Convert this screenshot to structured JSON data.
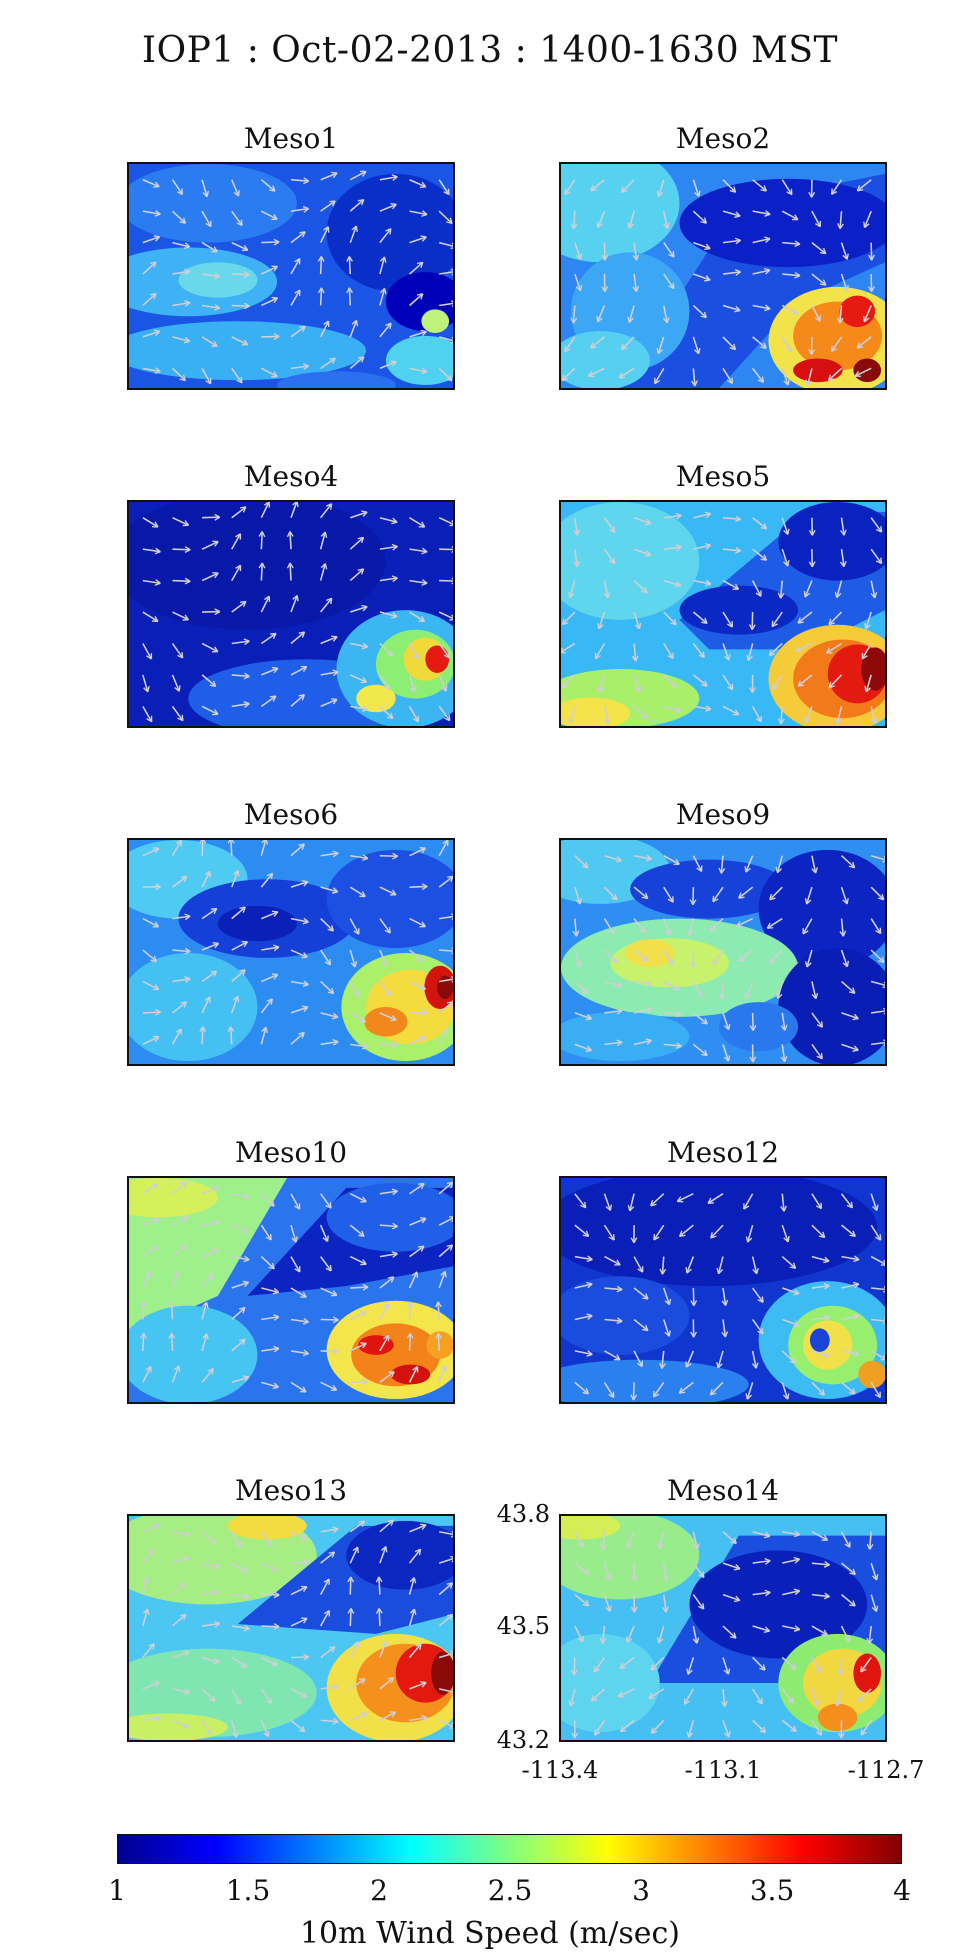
{
  "title": "IOP1 : Oct-02-2013 : 1400-1630 MST",
  "panels": [
    {
      "name": "Meso1"
    },
    {
      "name": "Meso2"
    },
    {
      "name": "Meso4"
    },
    {
      "name": "Meso5"
    },
    {
      "name": "Meso6"
    },
    {
      "name": "Meso9"
    },
    {
      "name": "Meso10"
    },
    {
      "name": "Meso12"
    },
    {
      "name": "Meso13"
    },
    {
      "name": "Meso14"
    }
  ],
  "axes": {
    "y_ticks": [
      "43.8",
      "43.5",
      "43.2"
    ],
    "x_ticks": [
      "-113.4",
      "-113.1",
      "-112.7"
    ]
  },
  "colorbar": {
    "label": "10m Wind Speed (m/sec)",
    "ticks": [
      "1",
      "1.5",
      "2",
      "2.5",
      "3",
      "3.5",
      "4"
    ],
    "range": [
      1,
      4
    ],
    "colormap": "jet"
  },
  "colors": {
    "jet_stops": [
      "#00008f",
      "#0000ff",
      "#0080ff",
      "#00ffff",
      "#80ff80",
      "#ffff00",
      "#ff8000",
      "#ff0000",
      "#800000"
    ],
    "arrow": "#cfcfd4",
    "axis": "#111111"
  }
}
